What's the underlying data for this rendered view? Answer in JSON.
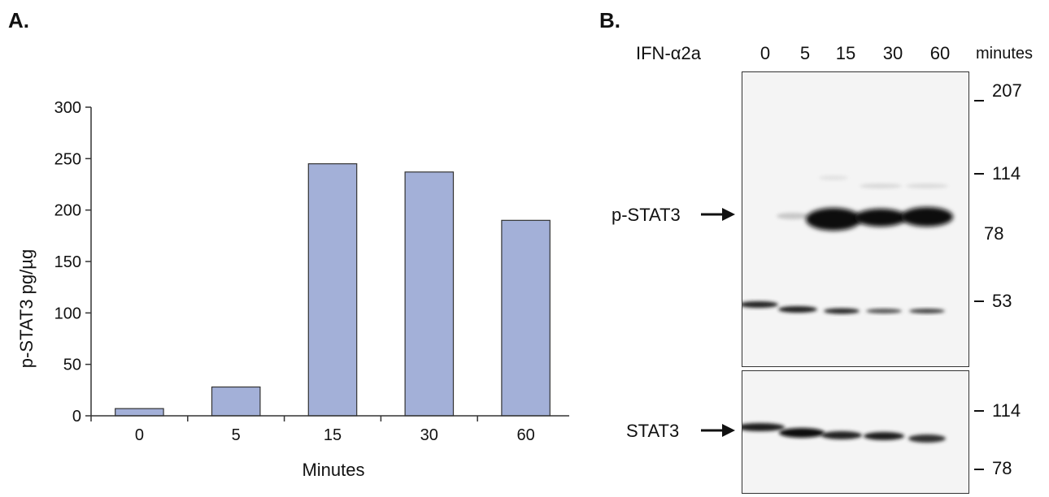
{
  "panel_a": {
    "label": "A.",
    "chart_data": {
      "type": "bar",
      "categories": [
        "0",
        "5",
        "15",
        "30",
        "60"
      ],
      "values": [
        7,
        28,
        245,
        237,
        190
      ],
      "title": "",
      "xlabel": "Minutes",
      "ylabel": "p-STAT3 pg/µg",
      "ylim": [
        0,
        300
      ],
      "yticks": [
        0,
        50,
        100,
        150,
        200,
        250,
        300
      ],
      "grid": false,
      "bar_color": "#a3b0d8"
    }
  },
  "panel_b": {
    "label": "B.",
    "treatment": "IFN-α2a",
    "lanes": [
      "0",
      "5",
      "15",
      "30",
      "60"
    ],
    "lane_unit": "minutes",
    "upper_blot": {
      "target": "p-STAT3",
      "markers": [
        "207",
        "114",
        "78",
        "53"
      ]
    },
    "lower_blot": {
      "target": "STAT3",
      "markers": [
        "114",
        "78"
      ]
    },
    "colors": {
      "band": "#111111",
      "blot_bg": "#f4f4f4"
    }
  }
}
